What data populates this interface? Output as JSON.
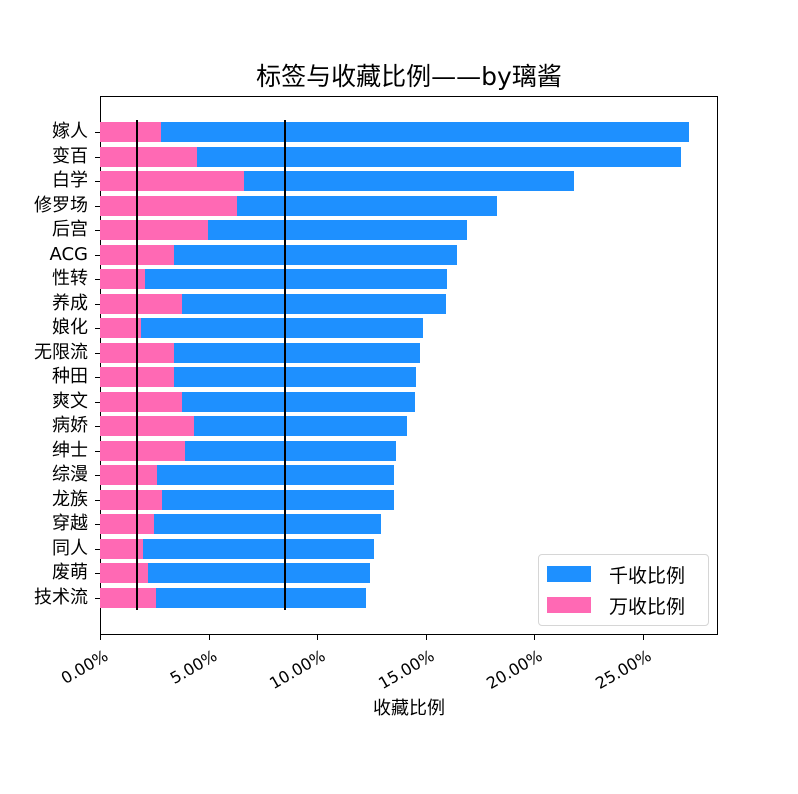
{
  "chart_data": {
    "type": "bar",
    "orientation": "horizontal",
    "title": "标签与收藏比例——by璃酱",
    "xlabel": "收藏比例",
    "ylabel": "",
    "xlim": [
      0,
      28.47
    ],
    "xticks": [
      0,
      5,
      10,
      15,
      20,
      25
    ],
    "xtick_labels": [
      "0.00%",
      "5.00%",
      "10.00%",
      "15.00%",
      "20.00%",
      "25.00%"
    ],
    "categories": [
      "嫁人",
      "变百",
      "白学",
      "修罗场",
      "后宫",
      "ACG",
      "性转",
      "养成",
      "娘化",
      "无限流",
      "种田",
      "爽文",
      "病娇",
      "绅士",
      "综漫",
      "龙族",
      "穿越",
      "同人",
      "废萌",
      "技术流"
    ],
    "series": [
      {
        "name": "千收比例",
        "color": "#1e90ff",
        "values": [
          27.12,
          26.75,
          21.82,
          18.28,
          16.9,
          16.44,
          15.97,
          15.93,
          14.87,
          14.73,
          14.55,
          14.5,
          14.13,
          13.63,
          13.54,
          13.54,
          12.94,
          12.62,
          12.43,
          12.25
        ]
      },
      {
        "name": "万收比例",
        "color": "#ff69b4",
        "values": [
          2.81,
          4.47,
          6.63,
          6.31,
          4.97,
          3.41,
          2.07,
          3.78,
          1.89,
          3.41,
          3.41,
          3.78,
          4.33,
          3.91,
          2.62,
          2.85,
          2.49,
          1.98,
          2.21,
          2.58
        ]
      }
    ],
    "reference_lines": [
      {
        "orientation": "vertical",
        "x": 1.7,
        "color": "#000000"
      },
      {
        "orientation": "vertical",
        "x": 8.52,
        "color": "#000000"
      }
    ],
    "grid": false,
    "legend_position": "lower right",
    "unit": "%"
  }
}
